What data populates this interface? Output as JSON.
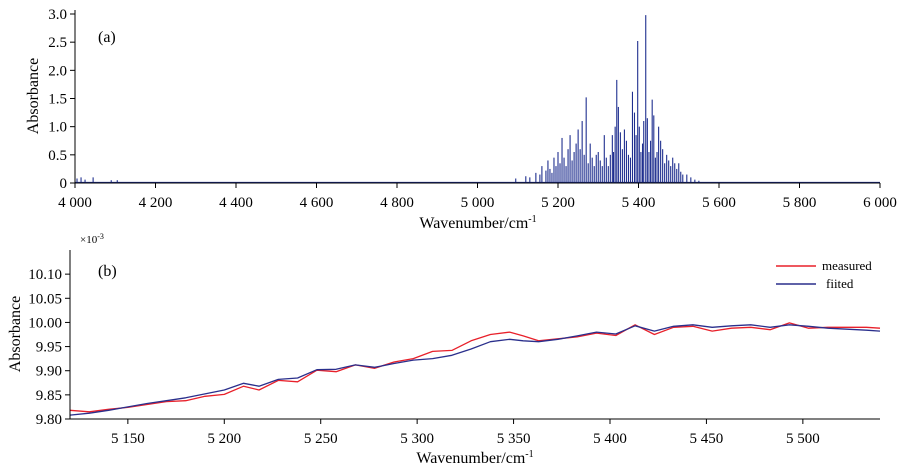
{
  "chart_data": [
    {
      "panel_label": "(a)",
      "type": "bar",
      "xlabel": "Wavenumber/cm",
      "xlabel_superscript": "-1",
      "ylabel": "Absorbance",
      "xlim": [
        4000,
        6000
      ],
      "ylim": [
        0,
        3.0
      ],
      "x_ticks": [
        4000,
        4200,
        4400,
        4600,
        4800,
        5000,
        5200,
        5400,
        5600,
        5800,
        6000
      ],
      "x_tick_labels": [
        "4 000",
        "4 200",
        "4 400",
        "4 600",
        "4 800",
        "5 000",
        "5 200",
        "5 400",
        "5 600",
        "5 800",
        "6 000"
      ],
      "y_ticks": [
        0,
        0.5,
        1.0,
        1.5,
        2.0,
        2.5,
        3.0
      ],
      "y_tick_labels": [
        "0",
        "0.5",
        "1.0",
        "1.5",
        "2.0",
        "2.5",
        "3.0"
      ],
      "series": [
        {
          "color": "#1f2f8f",
          "x": [
            4005,
            4015,
            4025,
            4045,
            4090,
            4105,
            5095,
            5120,
            5130,
            5145,
            5155,
            5160,
            5170,
            5175,
            5180,
            5185,
            5190,
            5195,
            5200,
            5205,
            5210,
            5215,
            5220,
            5225,
            5230,
            5235,
            5240,
            5245,
            5250,
            5255,
            5260,
            5265,
            5270,
            5275,
            5280,
            5285,
            5290,
            5295,
            5300,
            5305,
            5310,
            5315,
            5320,
            5325,
            5330,
            5335,
            5338,
            5342,
            5346,
            5350,
            5355,
            5360,
            5365,
            5370,
            5375,
            5380,
            5385,
            5390,
            5394,
            5398,
            5402,
            5406,
            5410,
            5413,
            5418,
            5422,
            5426,
            5430,
            5434,
            5438,
            5442,
            5446,
            5450,
            5455,
            5460,
            5465,
            5470,
            5475,
            5480,
            5485,
            5490,
            5495,
            5500,
            5505,
            5510,
            5520,
            5530,
            5540,
            5550
          ],
          "values": [
            0.08,
            0.1,
            0.06,
            0.1,
            0.05,
            0.05,
            0.08,
            0.12,
            0.1,
            0.18,
            0.15,
            0.3,
            0.22,
            0.4,
            0.25,
            0.18,
            0.45,
            0.3,
            0.55,
            0.35,
            0.8,
            0.45,
            0.3,
            0.6,
            0.85,
            0.4,
            0.55,
            0.7,
            0.95,
            0.6,
            1.1,
            0.5,
            1.52,
            0.35,
            0.7,
            0.45,
            0.3,
            0.5,
            0.55,
            0.4,
            0.3,
            0.85,
            0.45,
            0.3,
            0.5,
            0.85,
            0.55,
            1.0,
            1.83,
            1.35,
            0.9,
            0.6,
            0.95,
            0.75,
            0.5,
            0.45,
            1.62,
            1.25,
            0.85,
            2.52,
            1.0,
            0.55,
            0.7,
            1.1,
            2.98,
            1.15,
            0.55,
            0.75,
            1.48,
            1.2,
            0.45,
            0.55,
            1.0,
            0.75,
            0.6,
            0.35,
            0.5,
            0.4,
            0.3,
            0.45,
            0.35,
            0.25,
            0.35,
            0.2,
            0.15,
            0.15,
            0.1,
            0.06,
            0.04
          ]
        }
      ]
    },
    {
      "panel_label": "(b)",
      "type": "line",
      "xlabel": "Wavenumber/cm",
      "xlabel_superscript": "-1",
      "ylabel": "Absorbance",
      "y_multiplier": "×10",
      "y_multiplier_exp": "-3",
      "xlim": [
        5120,
        5540
      ],
      "ylim": [
        9.8,
        10.15
      ],
      "x_ticks": [
        5150,
        5200,
        5250,
        5300,
        5350,
        5400,
        5450,
        5500
      ],
      "x_tick_labels": [
        "5 150",
        "5 200",
        "5 250",
        "5 300",
        "5 350",
        "5 400",
        "5 450",
        "5 500"
      ],
      "y_ticks": [
        9.8,
        9.85,
        9.9,
        9.95,
        10.0,
        10.05,
        10.1
      ],
      "y_tick_labels": [
        "9.80",
        "9.85",
        "9.90",
        "9.95",
        "10.00",
        "10.05",
        "10.10"
      ],
      "legend_position": "top-right",
      "series": [
        {
          "name": "measured",
          "color": "#e8202a",
          "x": [
            5120,
            5130,
            5140,
            5150,
            5160,
            5170,
            5180,
            5190,
            5200,
            5210,
            5218,
            5228,
            5238,
            5248,
            5258,
            5268,
            5278,
            5288,
            5298,
            5308,
            5318,
            5328,
            5338,
            5348,
            5355,
            5363,
            5373,
            5383,
            5393,
            5403,
            5413,
            5423,
            5433,
            5443,
            5453,
            5463,
            5473,
            5483,
            5493,
            5503,
            5513,
            5523,
            5533,
            5540
          ],
          "values": [
            9.818,
            9.815,
            9.82,
            9.824,
            9.83,
            9.836,
            9.838,
            9.847,
            9.851,
            9.868,
            9.86,
            9.88,
            9.877,
            9.901,
            9.898,
            9.912,
            9.905,
            9.918,
            9.925,
            9.94,
            9.942,
            9.962,
            9.975,
            9.98,
            9.972,
            9.962,
            9.966,
            9.97,
            9.978,
            9.973,
            9.995,
            9.975,
            9.99,
            9.992,
            9.982,
            9.988,
            9.99,
            9.985,
            9.999,
            9.988,
            9.99,
            9.99,
            9.99,
            9.988
          ]
        },
        {
          "name": "fiited",
          "color": "#2a2f8c",
          "x": [
            5120,
            5130,
            5140,
            5150,
            5160,
            5170,
            5180,
            5190,
            5200,
            5210,
            5218,
            5228,
            5238,
            5248,
            5258,
            5268,
            5278,
            5288,
            5298,
            5308,
            5318,
            5328,
            5338,
            5348,
            5355,
            5363,
            5373,
            5383,
            5393,
            5403,
            5413,
            5423,
            5433,
            5443,
            5453,
            5463,
            5473,
            5483,
            5493,
            5503,
            5513,
            5523,
            5533,
            5540
          ],
          "values": [
            9.808,
            9.812,
            9.818,
            9.825,
            9.832,
            9.838,
            9.844,
            9.852,
            9.86,
            9.874,
            9.868,
            9.882,
            9.885,
            9.902,
            9.903,
            9.912,
            9.907,
            9.915,
            9.922,
            9.925,
            9.932,
            9.945,
            9.96,
            9.965,
            9.962,
            9.96,
            9.965,
            9.972,
            9.98,
            9.976,
            9.993,
            9.982,
            9.992,
            9.995,
            9.99,
            9.993,
            9.995,
            9.99,
            9.995,
            9.992,
            9.988,
            9.986,
            9.984,
            9.982
          ]
        }
      ]
    }
  ]
}
